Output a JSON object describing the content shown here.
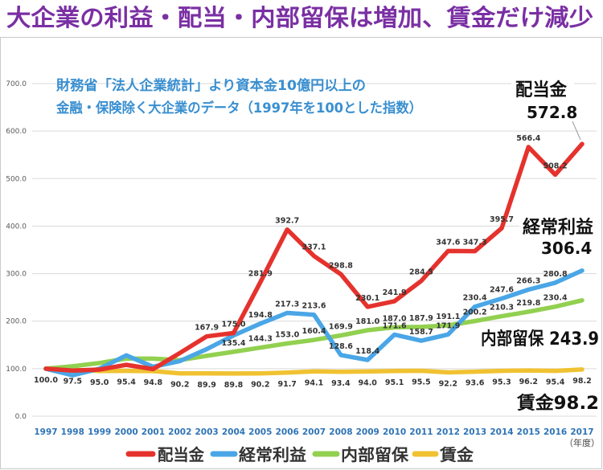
{
  "chart_data": {
    "type": "line",
    "title": "大企業の利益・配当・内部留保は増加、賃金だけ減少",
    "subtitle": [
      "財務省「法人企業統計」より資本金10億円以上の",
      "金融・保険除く大企業のデータ（1997年を100とした指数）"
    ],
    "x": [
      "1997",
      "1998",
      "1999",
      "2000",
      "2001",
      "2002",
      "2003",
      "2004",
      "2005",
      "2006",
      "2007",
      "2008",
      "2009",
      "2010",
      "2011",
      "2012",
      "2013",
      "2014",
      "2015",
      "2016",
      "2017"
    ],
    "xlabel": "（年度）",
    "ylabel": "",
    "ylim": [
      0,
      700
    ],
    "yticks": [
      "0.0",
      "100.0",
      "200.0",
      "300.0",
      "400.0",
      "500.0",
      "600.0",
      "700.0"
    ],
    "grid": true,
    "legend": "bottom",
    "series": [
      {
        "name": "配当金",
        "color": "#e5322d",
        "values": [
          100,
          96,
          98,
          108,
          99,
          133,
          167.9,
          175.0,
          281.9,
          392.7,
          337.1,
          298.8,
          230.1,
          241.9,
          284.5,
          347.6,
          347.3,
          395.7,
          566.4,
          508.2,
          572.8
        ],
        "labels": [
          "",
          "",
          "",
          "",
          "",
          "",
          "167.9",
          "175.0",
          "281.9",
          "392.7",
          "337.1",
          "298.8",
          "230.1",
          "241.9",
          "284.5",
          "347.6",
          "347.3",
          "395.7",
          "566.4",
          "508.2",
          ""
        ],
        "callout": [
          "配当金",
          "572.8"
        ]
      },
      {
        "name": "経常利益",
        "color": "#4aa6e6",
        "values": [
          100,
          86,
          100,
          128,
          104,
          116,
          141,
          170,
          194.8,
          217.3,
          213.6,
          128.6,
          118.4,
          171.6,
          158.7,
          171.9,
          230.4,
          247.6,
          266.3,
          280.8,
          306.4
        ],
        "labels": [
          "",
          "",
          "",
          "",
          "",
          "",
          "",
          "",
          "194.8",
          "217.3",
          "213.6",
          "128.6",
          "118.4",
          "171.6",
          "158.7",
          "171.9",
          "230.4",
          "247.6",
          "266.3",
          "280.8",
          ""
        ],
        "callout": [
          "経常利益",
          "306.4"
        ]
      },
      {
        "name": "内部留保",
        "color": "#92d050",
        "values": [
          100,
          105,
          112,
          121,
          121,
          118,
          127,
          135.4,
          144.3,
          153.0,
          160.4,
          169.9,
          181.0,
          187.0,
          187.9,
          191.1,
          200.2,
          210.3,
          219.8,
          230.4,
          243.9
        ],
        "labels": [
          "",
          "",
          "",
          "",
          "",
          "",
          "",
          "135.4",
          "144.3",
          "153.0",
          "160.4",
          "169.9",
          "181.0",
          "187.0",
          "187.9",
          "191.1",
          "200.2",
          "210.3",
          "219.8",
          "230.4",
          ""
        ],
        "callout": [
          "内部留保 243.9"
        ]
      },
      {
        "name": "賃金",
        "color": "#f0c232",
        "values": [
          100.0,
          97.5,
          95.0,
          95.4,
          94.8,
          90.2,
          89.9,
          89.8,
          90.2,
          91.7,
          94.1,
          93.4,
          94.0,
          95.1,
          95.5,
          92.2,
          93.6,
          95.3,
          96.2,
          95.4,
          98.2
        ],
        "labels": [
          "100.0",
          "97.5",
          "95.0",
          "95.4",
          "94.8",
          "90.2",
          "89.9",
          "89.8",
          "90.2",
          "91.7",
          "94.1",
          "93.4",
          "94.0",
          "95.1",
          "95.5",
          "92.2",
          "93.6",
          "95.3",
          "96.2",
          "95.4",
          "98.2"
        ],
        "callout": [
          "賃金98.2"
        ]
      }
    ]
  }
}
